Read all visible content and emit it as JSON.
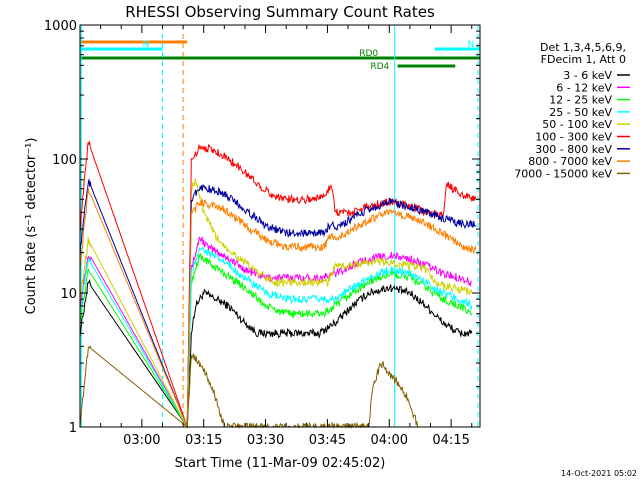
{
  "chart_data": {
    "type": "line",
    "title": "RHESSI Observing Summary Count Rates",
    "xlabel": "Start Time (11-Mar-09 02:45:02)",
    "ylabel": "Count Rate (s⁻¹ detector⁻¹)",
    "y_scale": "log",
    "ylim": [
      1,
      1000
    ],
    "xlim_minutes": [
      0,
      97
    ],
    "x_ticks": [
      {
        "min": 15,
        "label": "03:00"
      },
      {
        "min": 30,
        "label": "03:15"
      },
      {
        "min": 45,
        "label": "03:30"
      },
      {
        "min": 60,
        "label": "03:45"
      },
      {
        "min": 75,
        "label": "04:00"
      },
      {
        "min": 90,
        "label": "04:15"
      }
    ],
    "y_ticks": [
      {
        "value": 1,
        "label": "1"
      },
      {
        "value": 10,
        "label": "10"
      },
      {
        "value": 100,
        "label": "100"
      },
      {
        "value": 1000,
        "label": "1000"
      }
    ],
    "legend_header": [
      "Det 1,3,4,5,6,9,",
      "FDecim 1, Att 0"
    ],
    "legend_placement": "right",
    "series": [
      {
        "name": "3 - 6 keV",
        "color": "#000000",
        "values": [
          [
            0,
            5
          ],
          [
            2,
            12
          ],
          [
            26,
            1
          ],
          [
            27,
            5
          ],
          [
            28,
            8
          ],
          [
            30,
            10
          ],
          [
            33,
            9
          ],
          [
            36,
            8
          ],
          [
            40,
            6
          ],
          [
            43,
            5
          ],
          [
            48,
            5
          ],
          [
            54,
            5
          ],
          [
            58,
            5
          ],
          [
            62,
            6
          ],
          [
            66,
            8
          ],
          [
            70,
            10
          ],
          [
            75,
            11
          ],
          [
            80,
            10
          ],
          [
            84,
            8
          ],
          [
            88,
            6
          ],
          [
            92,
            5
          ],
          [
            95,
            5
          ]
        ]
      },
      {
        "name": "6 - 12 keV",
        "color": "#ff00ff",
        "values": [
          [
            0,
            8
          ],
          [
            2,
            20
          ],
          [
            26,
            1
          ],
          [
            27,
            15
          ],
          [
            29,
            26
          ],
          [
            31,
            22
          ],
          [
            35,
            19
          ],
          [
            40,
            15
          ],
          [
            45,
            13
          ],
          [
            50,
            13
          ],
          [
            55,
            13
          ],
          [
            59,
            13
          ],
          [
            62,
            14
          ],
          [
            66,
            16
          ],
          [
            70,
            18
          ],
          [
            75,
            19
          ],
          [
            80,
            18
          ],
          [
            84,
            16
          ],
          [
            88,
            14
          ],
          [
            92,
            13
          ],
          [
            95,
            12
          ]
        ]
      },
      {
        "name": "12 - 25 keV",
        "color": "#00ff00",
        "values": [
          [
            0,
            6
          ],
          [
            2,
            15
          ],
          [
            26,
            1
          ],
          [
            27,
            12
          ],
          [
            29,
            19
          ],
          [
            31,
            17
          ],
          [
            35,
            14
          ],
          [
            40,
            11
          ],
          [
            45,
            8
          ],
          [
            50,
            7
          ],
          [
            55,
            7
          ],
          [
            59,
            7
          ],
          [
            62,
            8
          ],
          [
            66,
            10
          ],
          [
            70,
            12
          ],
          [
            75,
            14
          ],
          [
            80,
            13
          ],
          [
            84,
            11
          ],
          [
            88,
            9
          ],
          [
            92,
            8
          ],
          [
            95,
            7
          ]
        ]
      },
      {
        "name": "25 - 50 keV",
        "color": "#00ffff",
        "values": [
          [
            0,
            7
          ],
          [
            2,
            18
          ],
          [
            26,
            1
          ],
          [
            27,
            14
          ],
          [
            29,
            22
          ],
          [
            31,
            20
          ],
          [
            35,
            17
          ],
          [
            40,
            13
          ],
          [
            45,
            10
          ],
          [
            50,
            9
          ],
          [
            55,
            9
          ],
          [
            59,
            9
          ],
          [
            62,
            9
          ],
          [
            66,
            11
          ],
          [
            70,
            13
          ],
          [
            75,
            15
          ],
          [
            80,
            14
          ],
          [
            84,
            12
          ],
          [
            88,
            10
          ],
          [
            92,
            9
          ],
          [
            95,
            8
          ]
        ]
      },
      {
        "name": "50 - 100 keV",
        "color": "#d0d000",
        "values": [
          [
            0,
            9
          ],
          [
            2,
            25
          ],
          [
            26,
            1
          ],
          [
            27,
            60
          ],
          [
            28,
            70
          ],
          [
            30,
            40
          ],
          [
            33,
            26
          ],
          [
            37,
            20
          ],
          [
            42,
            15
          ],
          [
            47,
            12
          ],
          [
            52,
            12
          ],
          [
            58,
            12
          ],
          [
            60,
            12
          ],
          [
            62,
            16
          ],
          [
            66,
            16
          ],
          [
            70,
            17
          ],
          [
            75,
            17
          ],
          [
            80,
            16
          ],
          [
            84,
            15
          ],
          [
            86,
            12
          ],
          [
            90,
            11
          ],
          [
            95,
            10
          ]
        ]
      },
      {
        "name": "100 - 300 keV",
        "color": "#ff0000",
        "values": [
          [
            0,
            30
          ],
          [
            2,
            135
          ],
          [
            26,
            1
          ],
          [
            27,
            95
          ],
          [
            29,
            125
          ],
          [
            31,
            120
          ],
          [
            34,
            110
          ],
          [
            38,
            90
          ],
          [
            42,
            70
          ],
          [
            46,
            55
          ],
          [
            50,
            50
          ],
          [
            55,
            50
          ],
          [
            59,
            52
          ],
          [
            61,
            65
          ],
          [
            62,
            40
          ],
          [
            66,
            40
          ],
          [
            70,
            45
          ],
          [
            75,
            48
          ],
          [
            80,
            45
          ],
          [
            84,
            40
          ],
          [
            88,
            38
          ],
          [
            89,
            65
          ],
          [
            91,
            58
          ],
          [
            94,
            52
          ],
          [
            96,
            50
          ]
        ]
      },
      {
        "name": "300 - 800 keV",
        "color": "#0000a0",
        "values": [
          [
            0,
            20
          ],
          [
            2,
            70
          ],
          [
            26,
            1
          ],
          [
            27,
            50
          ],
          [
            29,
            62
          ],
          [
            31,
            60
          ],
          [
            35,
            55
          ],
          [
            40,
            42
          ],
          [
            45,
            32
          ],
          [
            50,
            28
          ],
          [
            55,
            28
          ],
          [
            59,
            28
          ],
          [
            61,
            33
          ],
          [
            62,
            30
          ],
          [
            66,
            36
          ],
          [
            70,
            42
          ],
          [
            75,
            48
          ],
          [
            80,
            44
          ],
          [
            84,
            40
          ],
          [
            88,
            36
          ],
          [
            92,
            33
          ],
          [
            96,
            32
          ]
        ]
      },
      {
        "name": "800 - 7000 keV",
        "color": "#ff8000",
        "values": [
          [
            0,
            15
          ],
          [
            2,
            60
          ],
          [
            26,
            1
          ],
          [
            27,
            38
          ],
          [
            29,
            48
          ],
          [
            31,
            46
          ],
          [
            35,
            42
          ],
          [
            40,
            32
          ],
          [
            45,
            25
          ],
          [
            50,
            22
          ],
          [
            55,
            22
          ],
          [
            59,
            22
          ],
          [
            61,
            27
          ],
          [
            62,
            25
          ],
          [
            66,
            30
          ],
          [
            70,
            35
          ],
          [
            75,
            40
          ],
          [
            80,
            37
          ],
          [
            84,
            33
          ],
          [
            88,
            28
          ],
          [
            90,
            25
          ],
          [
            93,
            22
          ],
          [
            96,
            21
          ]
        ]
      },
      {
        "name": "7000 - 15000 keV",
        "color": "#806000",
        "values": [
          [
            0,
            1
          ],
          [
            2,
            4
          ],
          [
            26,
            1
          ],
          [
            27,
            3.5
          ],
          [
            29,
            3
          ],
          [
            32,
            2
          ],
          [
            35,
            1
          ],
          [
            70,
            1
          ],
          [
            71,
            2
          ],
          [
            73,
            3
          ],
          [
            75,
            2.5
          ],
          [
            78,
            2
          ],
          [
            80,
            1.5
          ],
          [
            82,
            1
          ]
        ]
      }
    ],
    "flag_bars": [
      {
        "label": "",
        "color": "#ff8000",
        "x_range": [
          0,
          26
        ]
      },
      {
        "label": "N",
        "color": "#00ffff",
        "x_range": [
          0,
          20
        ]
      },
      {
        "label": "N",
        "color": "#00ffff",
        "x_range": [
          86,
          97
        ]
      },
      {
        "label": "RD0",
        "color": "#008000",
        "x_range": [
          0,
          97
        ]
      },
      {
        "label": "RD4",
        "color": "#008000",
        "x_range": [
          77,
          91
        ]
      }
    ],
    "vertical_markers": [
      {
        "min": 0.3,
        "color": "#00ffff",
        "style": "solid"
      },
      {
        "min": 20,
        "color": "#00ffff",
        "style": "dashed"
      },
      {
        "min": 25,
        "color": "#ff8000",
        "style": "dashed"
      },
      {
        "min": 76.3,
        "color": "#00ffff",
        "style": "solid"
      },
      {
        "min": 96.5,
        "color": "#00ffff",
        "style": "dashed"
      }
    ]
  },
  "footer": {
    "date_stamp": "14-Oct-2021 05:02"
  }
}
